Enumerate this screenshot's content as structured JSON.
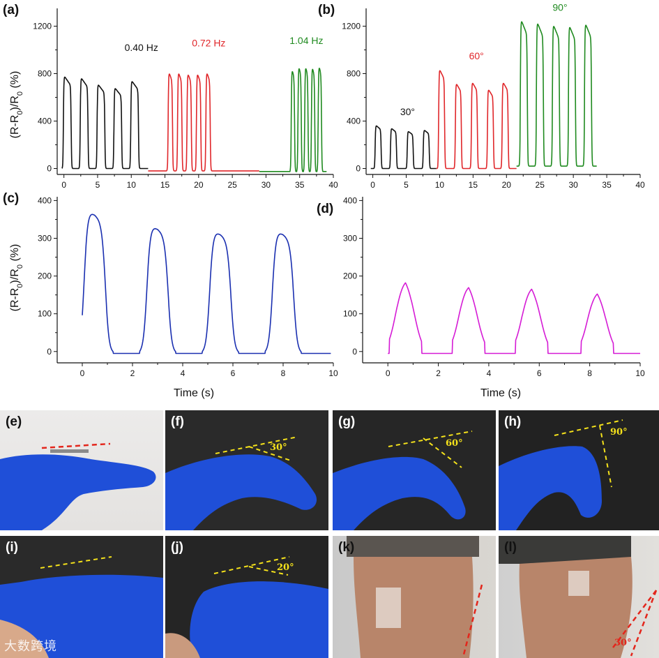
{
  "panel_letters": {
    "a": "(a)",
    "b": "(b)",
    "c": "(c)",
    "d": "(d)",
    "e": "(e)",
    "f": "(f)",
    "g": "(g)",
    "h": "(h)",
    "i": "(i)",
    "j": "(j)",
    "k": "(k)",
    "l": "(l)"
  },
  "y_axis_title_prefix": "(R-R",
  "y_axis_title_mid": ")/R",
  "y_axis_title_suffix": " (%)",
  "y_axis_subscript": "0",
  "x_axis_title": "Time (s)",
  "photo_angles": {
    "f": "30°",
    "g": "60°",
    "h": "90°",
    "j": "20°",
    "l": "30°"
  },
  "watermark": "大数跨境",
  "colors": {
    "black": "#111111",
    "red": "#e0262a",
    "green": "#1f8a1f",
    "blue": "#1a2fb0",
    "magenta": "#d51bd5",
    "yellow_line": "#f5e21b",
    "red_line": "#e3261c"
  },
  "chart_data": [
    {
      "panel": "a",
      "type": "line",
      "xlim": [
        -1,
        40
      ],
      "ylim": [
        -50,
        1350
      ],
      "xticks": [
        0,
        5,
        10,
        15,
        20,
        25,
        30,
        35,
        40
      ],
      "yticks": [
        0,
        400,
        800,
        1200
      ],
      "series": [
        {
          "color": "black",
          "label": "0.40 Hz",
          "label_pos": [
            11.5,
            990
          ],
          "peaks_x": [
            0.5,
            3.0,
            5.5,
            8.0,
            10.5
          ],
          "peaks_y": [
            790,
            775,
            720,
            690,
            750
          ],
          "width": 1.15,
          "baseline": 0,
          "x_range": [
            -0.3,
            12.5
          ]
        },
        {
          "color": "red",
          "label": "0.72 Hz",
          "label_pos": [
            21.5,
            1030
          ],
          "peaks_x": [
            15.8,
            17.2,
            18.6,
            20.0,
            21.4
          ],
          "peaks_y": [
            830,
            830,
            820,
            820,
            830
          ],
          "width": 0.65,
          "baseline": -20,
          "x_range": [
            12.5,
            29
          ]
        },
        {
          "color": "green",
          "label": "1.04 Hz",
          "label_pos": [
            36.0,
            1050
          ],
          "peaks_x": [
            34.0,
            35.0,
            36.0,
            37.0,
            38.0
          ],
          "peaks_y": [
            860,
            885,
            885,
            880,
            890
          ],
          "width": 0.5,
          "baseline": -25,
          "x_range": [
            29,
            39
          ]
        }
      ]
    },
    {
      "panel": "b",
      "type": "line",
      "xlim": [
        -1,
        40
      ],
      "ylim": [
        -50,
        1350
      ],
      "xticks": [
        0,
        5,
        10,
        15,
        20,
        25,
        30,
        35,
        40
      ],
      "yticks": [
        0,
        400,
        800,
        1200
      ],
      "series": [
        {
          "color": "black",
          "label": "30°",
          "label_pos": [
            5.2,
            450
          ],
          "peaks_x": [
            0.8,
            3.1,
            5.6,
            8.0
          ],
          "peaks_y": [
            370,
            345,
            320,
            330
          ],
          "width": 0.9,
          "baseline": 0,
          "x_range": [
            -0.3,
            9.5
          ]
        },
        {
          "color": "red",
          "label": "60°",
          "label_pos": [
            15.5,
            920
          ],
          "peaks_x": [
            10.3,
            12.8,
            15.2,
            17.6,
            19.8
          ],
          "peaks_y": [
            850,
            730,
            740,
            680,
            740
          ],
          "width": 0.9,
          "baseline": 0,
          "x_range": [
            9.5,
            21.5
          ]
        },
        {
          "color": "green",
          "label": "90°",
          "label_pos": [
            28.0,
            1330
          ],
          "peaks_x": [
            22.6,
            25.0,
            27.4,
            29.8,
            32.2
          ],
          "peaks_y": [
            1270,
            1250,
            1230,
            1220,
            1240
          ],
          "width": 1.05,
          "baseline": 20,
          "x_range": [
            21.5,
            33.5
          ]
        }
      ]
    },
    {
      "panel": "c",
      "type": "line",
      "xlim": [
        -1,
        10
      ],
      "ylim": [
        -30,
        410
      ],
      "xticks": [
        0,
        2,
        4,
        6,
        8,
        10
      ],
      "yticks": [
        0,
        100,
        200,
        300,
        400
      ],
      "series": [
        {
          "color": "blue",
          "peaks_x": [
            0.5,
            3.0,
            5.5,
            8.0
          ],
          "peaks_y": [
            385,
            345,
            330,
            330
          ],
          "width": 0.85,
          "baseline": -5,
          "x_range": [
            0,
            9.9
          ]
        }
      ]
    },
    {
      "panel": "d",
      "type": "line",
      "xlim": [
        -1,
        10
      ],
      "ylim": [
        -30,
        410
      ],
      "xticks": [
        0,
        2,
        4,
        6,
        8,
        10
      ],
      "yticks": [
        0,
        100,
        200,
        300,
        400
      ],
      "series": [
        {
          "color": "magenta",
          "peaks_x": [
            0.7,
            3.2,
            5.7,
            8.3
          ],
          "peaks_y": [
            215,
            200,
            195,
            180
          ],
          "width": 0.75,
          "baseline": -5,
          "x_range": [
            0,
            10
          ]
        }
      ]
    }
  ]
}
